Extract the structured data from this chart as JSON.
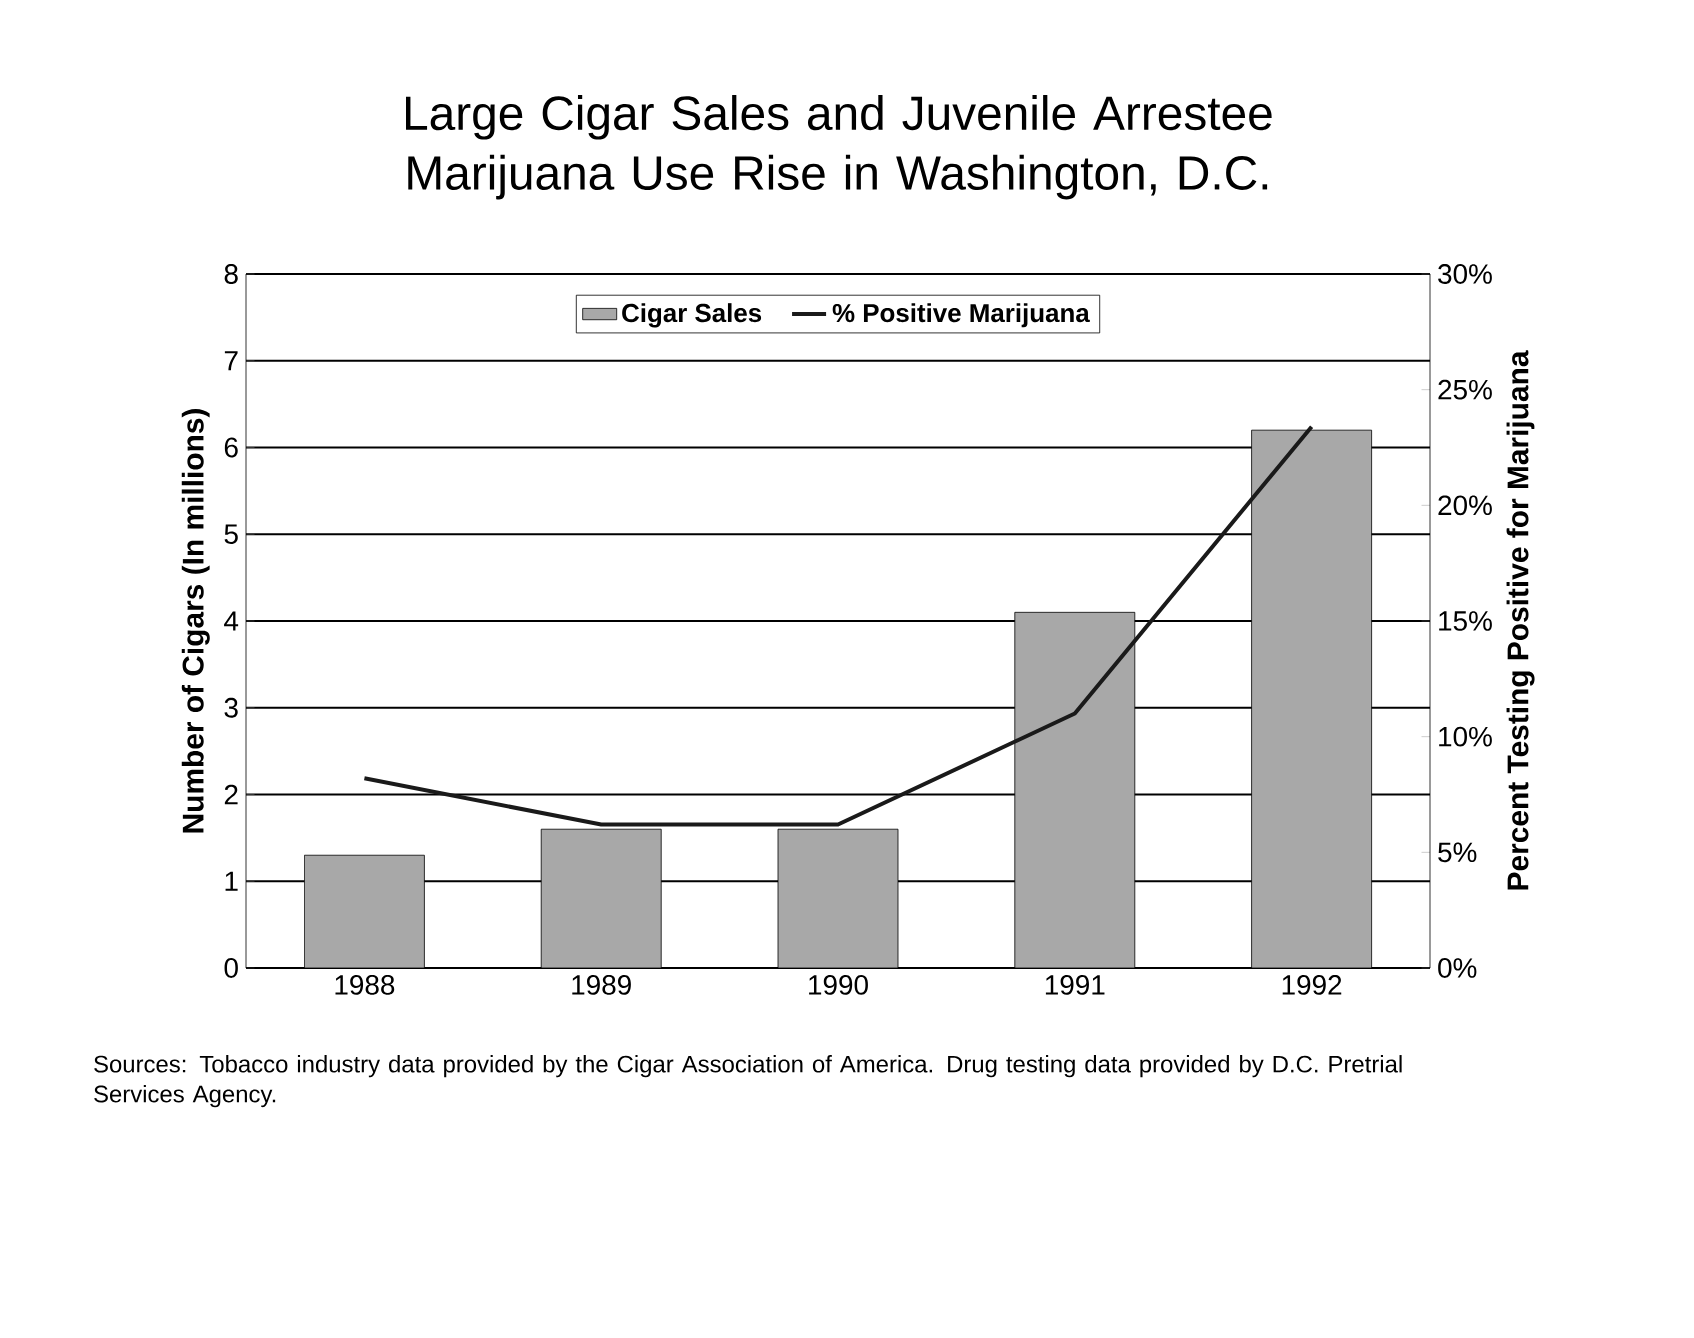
{
  "chart_data": {
    "type": "bar",
    "title": "Large Cigar Sales and Juvenile Arrestee Marijuana Use Rise in Washington, D.C.",
    "ylabel": "Number of Cigars (In millions)",
    "y2label": "Percent Testing Positive for Marijuana",
    "categories": [
      "1988",
      "1989",
      "1990",
      "1991",
      "1992"
    ],
    "series": [
      {
        "name": "Cigar Sales",
        "color": "#a8a8a8",
        "values": [
          1.3,
          1.6,
          1.6,
          4.1,
          6.2
        ]
      },
      {
        "name": "% Positive Marijuana",
        "type": "line",
        "axis": "y2",
        "color": "#1a1a1a",
        "values": [
          8.2,
          6.2,
          6.2,
          11,
          23.4
        ]
      }
    ],
    "ylim": [
      0,
      8
    ],
    "yticks": [
      0,
      1,
      2,
      3,
      4,
      5,
      6,
      7,
      8
    ],
    "y2lim": [
      0,
      30
    ],
    "y2ticks": [
      {
        "value": 0,
        "label": "0%"
      },
      {
        "value": 5,
        "label": "5%"
      },
      {
        "value": 10,
        "label": "10%"
      },
      {
        "value": 15,
        "label": "15%"
      },
      {
        "value": 20,
        "label": "20%"
      },
      {
        "value": 25,
        "label": "25%"
      },
      {
        "value": 30,
        "label": "30%"
      }
    ],
    "grid": "y",
    "legend": "top",
    "annotations": [
      "Sources: Tobacco industry data provided by the Cigar Association of America. Drug testing data provided by D.C. Pretrial Services Agency."
    ]
  }
}
